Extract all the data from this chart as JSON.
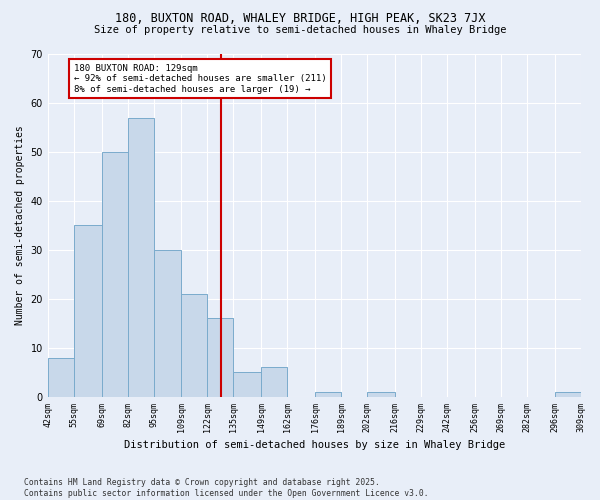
{
  "title1": "180, BUXTON ROAD, WHALEY BRIDGE, HIGH PEAK, SK23 7JX",
  "title2": "Size of property relative to semi-detached houses in Whaley Bridge",
  "xlabel": "Distribution of semi-detached houses by size in Whaley Bridge",
  "ylabel": "Number of semi-detached properties",
  "footnote": "Contains HM Land Registry data © Crown copyright and database right 2025.\nContains public sector information licensed under the Open Government Licence v3.0.",
  "bins": [
    42,
    55,
    69,
    82,
    95,
    109,
    122,
    135,
    149,
    162,
    176,
    189,
    202,
    216,
    229,
    242,
    256,
    269,
    282,
    296,
    309
  ],
  "bin_labels": [
    "42sqm",
    "55sqm",
    "69sqm",
    "82sqm",
    "95sqm",
    "109sqm",
    "122sqm",
    "135sqm",
    "149sqm",
    "162sqm",
    "176sqm",
    "189sqm",
    "202sqm",
    "216sqm",
    "229sqm",
    "242sqm",
    "256sqm",
    "269sqm",
    "282sqm",
    "296sqm",
    "309sqm"
  ],
  "values": [
    8,
    35,
    50,
    57,
    30,
    21,
    16,
    5,
    6,
    0,
    1,
    0,
    1,
    0,
    0,
    0,
    0,
    0,
    0,
    1
  ],
  "bar_color": "#c8d8ea",
  "bar_edge_color": "#7aabcc",
  "red_line_x": 129,
  "annotation_title": "180 BUXTON ROAD: 129sqm",
  "annotation_line1": "← 92% of semi-detached houses are smaller (211)",
  "annotation_line2": "8% of semi-detached houses are larger (19) →",
  "annotation_box_color": "#ffffff",
  "annotation_box_edge": "#cc0000",
  "red_line_color": "#cc0000",
  "ylim": [
    0,
    70
  ],
  "yticks": [
    0,
    10,
    20,
    30,
    40,
    50,
    60,
    70
  ],
  "bg_color": "#e8eef8",
  "plot_bg_color": "#e8eef8",
  "grid_color": "#ffffff"
}
